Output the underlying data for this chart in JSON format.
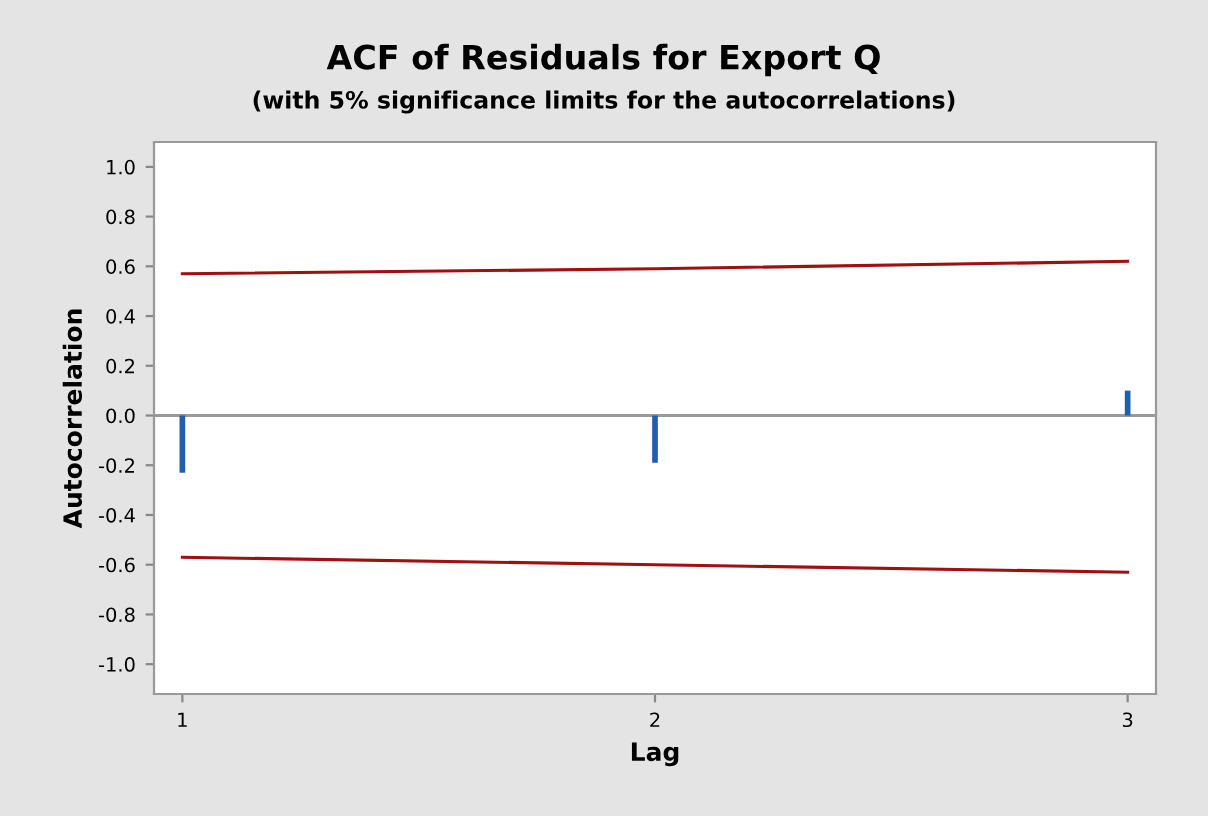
{
  "chart_data": {
    "type": "bar",
    "title": "ACF of Residuals for Export Q",
    "subtitle": "(with 5% significance limits for the autocorrelations)",
    "xlabel": "Lag",
    "ylabel": "Autocorrelation",
    "x": [
      1,
      2,
      3
    ],
    "series": [
      {
        "color": "#1f5fad",
        "values": [
          -0.23,
          -0.19,
          0.1
        ]
      },
      {
        "type": "line",
        "color": "#a01010",
        "values": [
          0.57,
          0.59,
          0.62
        ]
      },
      {
        "type": "line",
        "color": "#a01010",
        "values": [
          -0.57,
          -0.6,
          -0.63
        ]
      }
    ],
    "xlim": [
      0.94,
      3.06
    ],
    "xticks": [
      1,
      2,
      3
    ],
    "ylim": [
      -1.12,
      1.1
    ],
    "yticks": [
      {
        "value": -1.0,
        "label": "-1.0"
      },
      {
        "value": -0.8,
        "label": "-0.8"
      },
      {
        "value": -0.6,
        "label": "-0.6"
      },
      {
        "value": -0.4,
        "label": "-0.4"
      },
      {
        "value": -0.2,
        "label": "-0.2"
      },
      {
        "value": 0.0,
        "label": "0.0"
      },
      {
        "value": 0.2,
        "label": "0.2"
      },
      {
        "value": 0.4,
        "label": "0.4"
      },
      {
        "value": 0.6,
        "label": "0.6"
      },
      {
        "value": 0.8,
        "label": "0.8"
      },
      {
        "value": 1.0,
        "label": "1.0"
      }
    ],
    "ref_lines": [
      {
        "axis": "y",
        "value": 0,
        "color": "#999999"
      }
    ],
    "grid": false,
    "legend": false
  }
}
